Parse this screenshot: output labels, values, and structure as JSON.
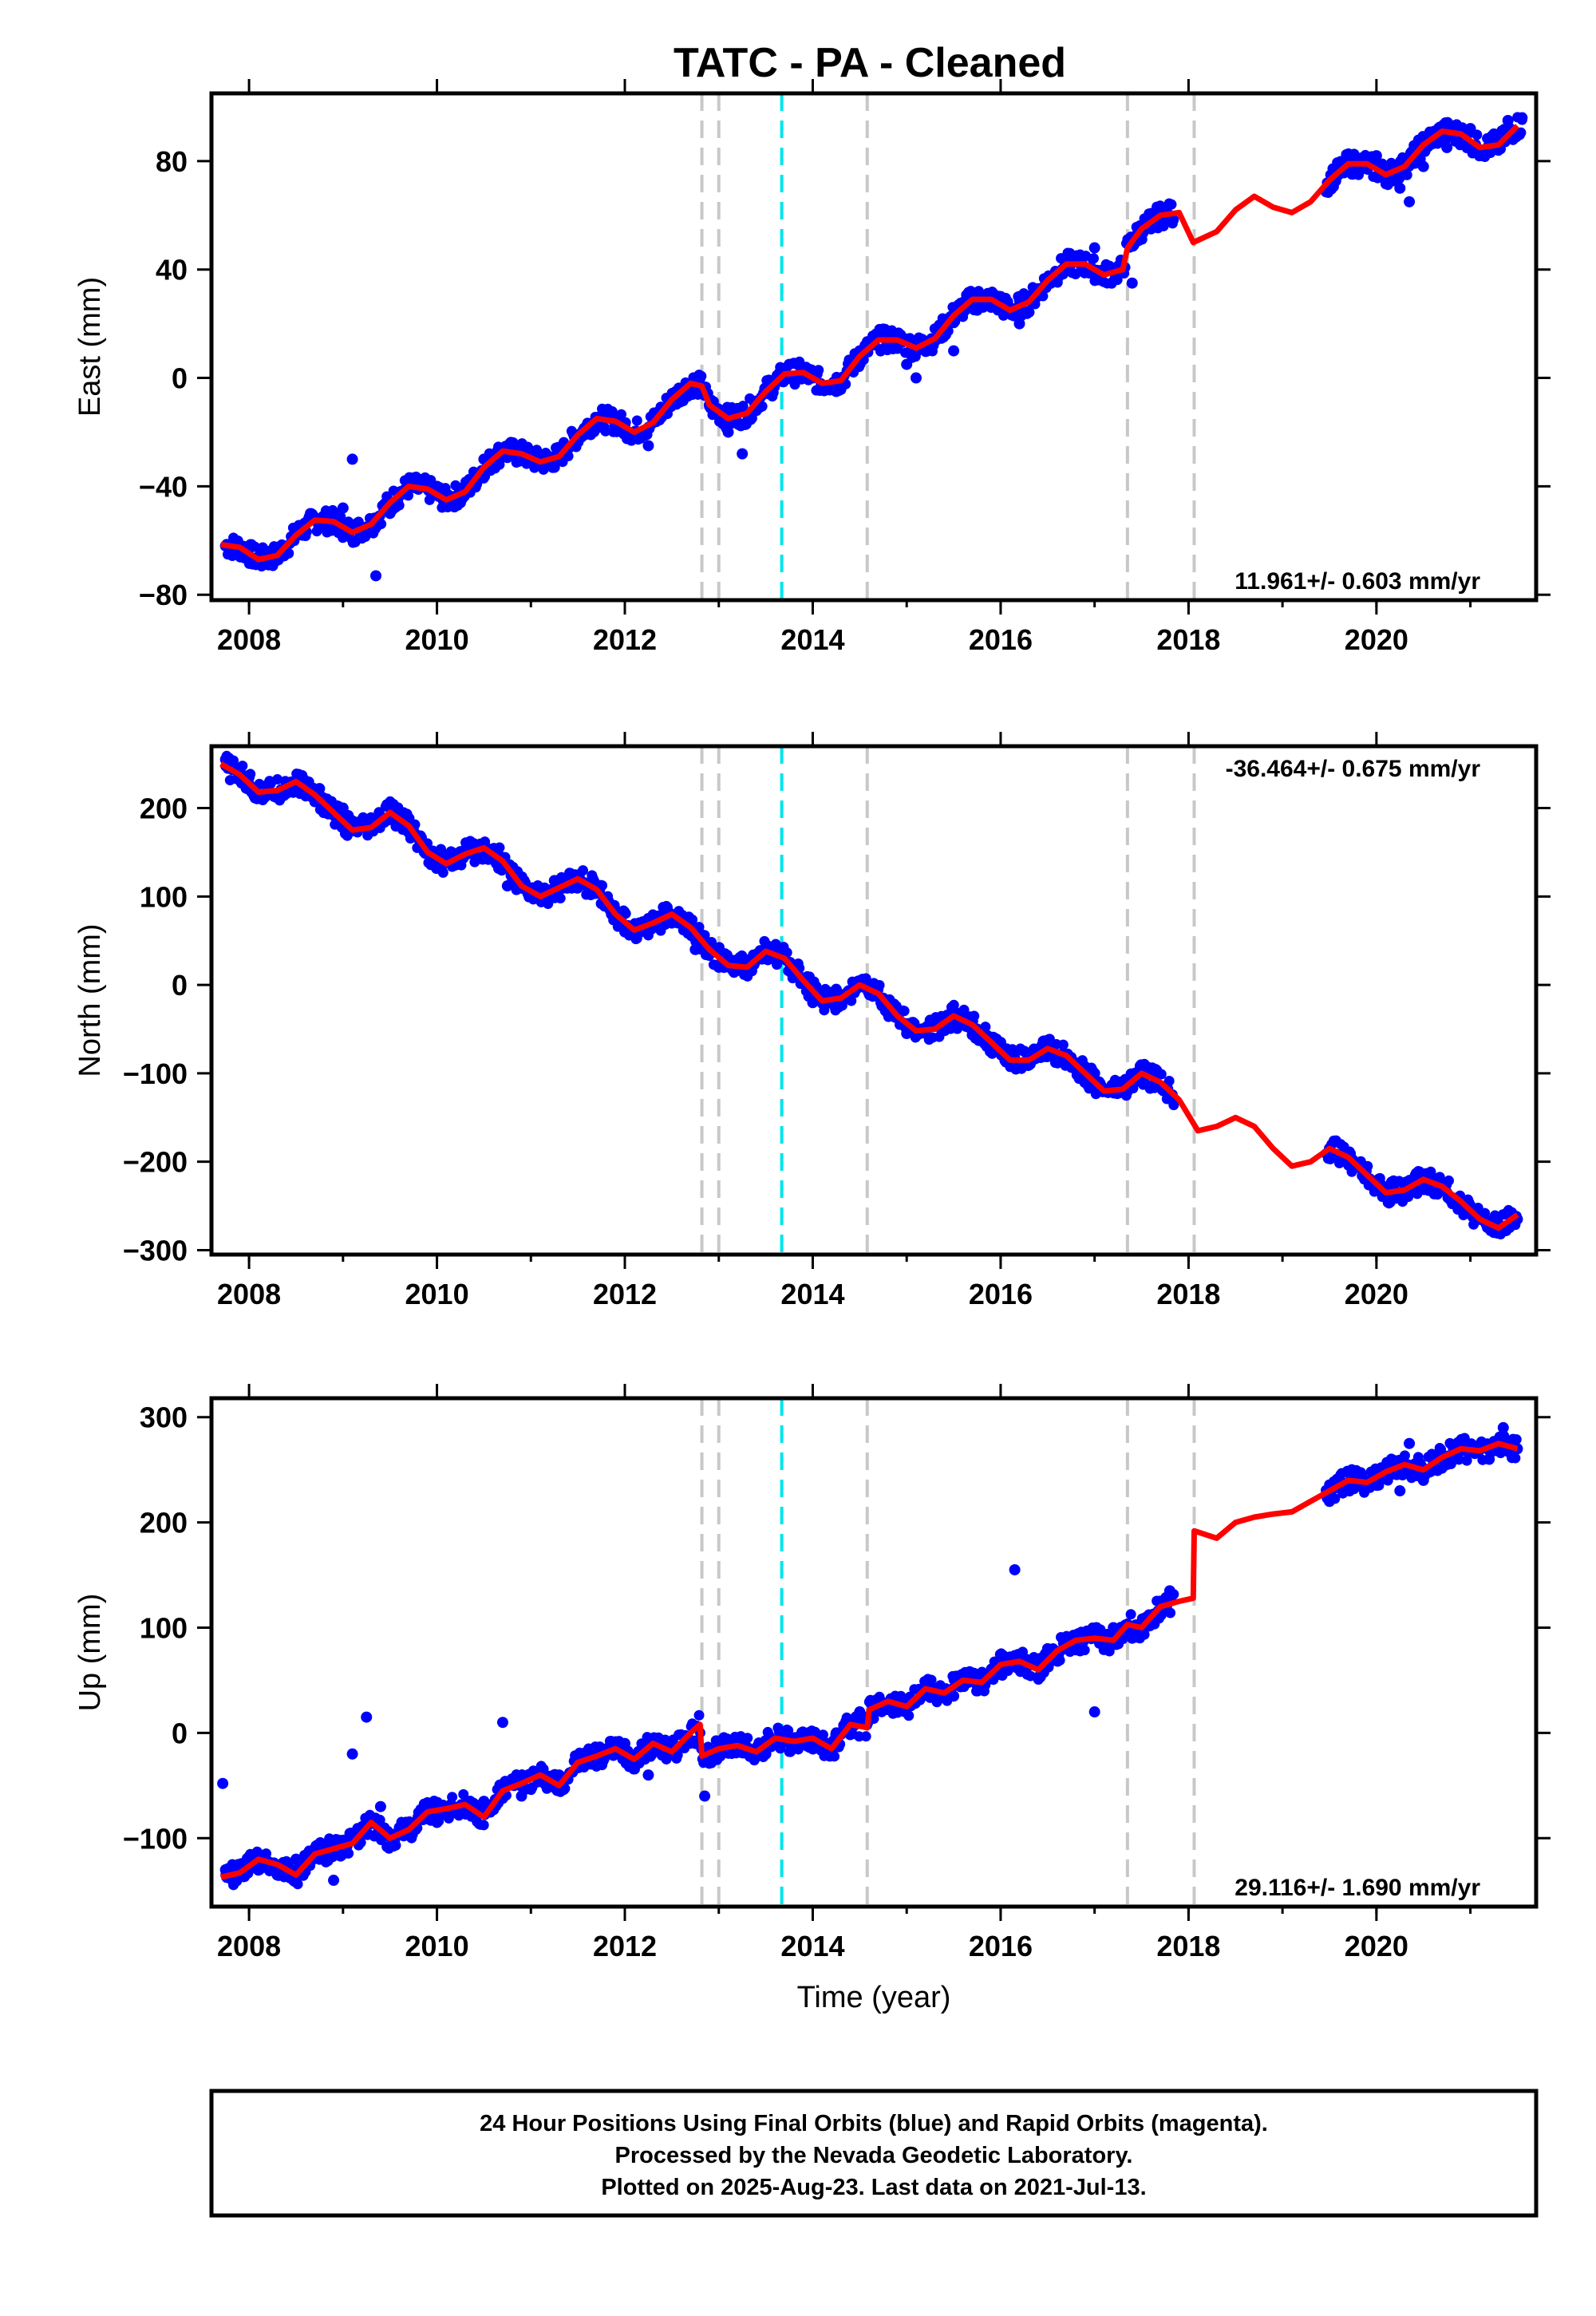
{
  "chart_data": [
    {
      "type": "scatter",
      "panel": "east",
      "title": "TATC  - PA - Cleaned",
      "ylabel": "East (mm)",
      "xlabel": "",
      "xlim": [
        2007.6,
        2021.7
      ],
      "ylim": [
        -82,
        105
      ],
      "xticks": [
        2008,
        2010,
        2012,
        2014,
        2016,
        2018,
        2020
      ],
      "yticks": [
        -80,
        -40,
        0,
        40,
        80
      ],
      "rate_label": "11.961+/- 0.603 mm/yr",
      "rate_position": "bottom-right",
      "grid": false,
      "series": [
        {
          "name": "Final Orbits",
          "color": "#0000ff",
          "x": [
            2007.75,
            2008.0,
            2008.25,
            2008.5,
            2008.75,
            2009.0,
            2009.1,
            2009.25,
            2009.35,
            2009.5,
            2009.75,
            2010.0,
            2010.25,
            2010.5,
            2010.75,
            2011.0,
            2011.25,
            2011.5,
            2011.75,
            2012.0,
            2012.25,
            2012.5,
            2012.75,
            2012.9,
            2013.1,
            2013.25,
            2013.5,
            2013.75,
            2014.0,
            2014.25,
            2014.5,
            2014.75,
            2015.0,
            2015.1,
            2015.25,
            2015.5,
            2015.75,
            2016.0,
            2016.2,
            2016.5,
            2016.75,
            2017.0,
            2017.2,
            2017.4,
            2017.6,
            2017.8,
            2019.5,
            2019.75,
            2020.0,
            2020.25,
            2020.35,
            2020.5,
            2020.75,
            2021.0,
            2021.25,
            2021.4,
            2021.55
          ],
          "y": [
            -62,
            -63,
            -67,
            -58,
            -52,
            -48,
            -30,
            -55,
            -73,
            -50,
            -40,
            -40,
            -46,
            -30,
            -25,
            -27,
            -33,
            -22,
            -16,
            -18,
            -25,
            -10,
            -3,
            -10,
            -20,
            -28,
            -5,
            5,
            0,
            -5,
            10,
            18,
            5,
            0,
            12,
            10,
            25,
            30,
            20,
            35,
            42,
            48,
            40,
            35,
            55,
            60,
            70,
            78,
            82,
            70,
            65,
            78,
            85,
            92,
            90,
            95,
            96
          ]
        },
        {
          "name": "Model",
          "color": "#ff0000",
          "x": [
            2007.7,
            2007.9,
            2008.1,
            2008.3,
            2008.5,
            2008.7,
            2008.9,
            2009.1,
            2009.3,
            2009.5,
            2009.7,
            2009.9,
            2010.1,
            2010.3,
            2010.5,
            2010.7,
            2010.9,
            2011.1,
            2011.3,
            2011.5,
            2011.7,
            2011.9,
            2012.1,
            2012.3,
            2012.5,
            2012.7,
            2012.82,
            2012.9,
            2013.1,
            2013.3,
            2013.5,
            2013.7,
            2013.9,
            2014.1,
            2014.3,
            2014.5,
            2014.7,
            2014.9,
            2015.1,
            2015.3,
            2015.5,
            2015.7,
            2015.9,
            2016.1,
            2016.3,
            2016.5,
            2016.7,
            2016.9,
            2017.1,
            2017.3,
            2017.35,
            2017.5,
            2017.7,
            2017.9,
            2018.05,
            2018.3,
            2018.5,
            2018.7,
            2018.9,
            2019.1,
            2019.3,
            2019.5,
            2019.7,
            2019.9,
            2020.1,
            2020.3,
            2020.5,
            2020.7,
            2020.9,
            2021.1,
            2021.3,
            2021.5
          ],
          "y": [
            -61.5,
            -62.5,
            -67,
            -65.5,
            -58,
            -52.5,
            -53,
            -57,
            -54,
            -46,
            -40,
            -41,
            -45,
            -42,
            -33,
            -27,
            -28,
            -31,
            -29,
            -21,
            -15,
            -16,
            -20,
            -16.5,
            -8,
            -2,
            -3,
            -10,
            -15,
            -13,
            -5,
            1.5,
            2,
            -2,
            -1,
            8,
            14,
            14,
            11,
            14.5,
            23,
            29,
            29,
            25,
            28,
            36,
            42,
            42,
            38,
            40,
            48,
            55,
            60,
            61,
            50,
            54,
            62,
            67,
            63,
            61,
            65,
            73,
            79,
            79,
            75,
            78,
            86,
            91,
            90,
            85,
            86,
            93
          ]
        }
      ],
      "event_lines": [
        {
          "x": 2012.82,
          "color": "#c8c8c8"
        },
        {
          "x": 2013.0,
          "color": "#c8c8c8"
        },
        {
          "x": 2013.67,
          "color": "#00e5ee"
        },
        {
          "x": 2014.58,
          "color": "#c8c8c8"
        },
        {
          "x": 2017.35,
          "color": "#c8c8c8"
        },
        {
          "x": 2018.06,
          "color": "#c8c8c8"
        }
      ]
    },
    {
      "type": "scatter",
      "panel": "north",
      "ylabel": "North (mm)",
      "xlabel": "",
      "xlim": [
        2007.6,
        2021.7
      ],
      "ylim": [
        -305,
        270
      ],
      "xticks": [
        2008,
        2010,
        2012,
        2014,
        2016,
        2018,
        2020
      ],
      "yticks": [
        -300,
        -200,
        -100,
        0,
        100,
        200
      ],
      "rate_label": "-36.464+/- 0.675 mm/yr",
      "rate_position": "top-right",
      "grid": false,
      "series": [
        {
          "name": "Final Orbits",
          "color": "#0000ff",
          "x": [
            2007.75,
            2008.0,
            2008.25,
            2008.5,
            2008.75,
            2009.0,
            2009.25,
            2009.5,
            2009.75,
            2010.0,
            2010.25,
            2010.5,
            2010.75,
            2011.0,
            2011.25,
            2011.5,
            2011.75,
            2012.0,
            2012.25,
            2012.5,
            2012.75,
            2013.0,
            2013.25,
            2013.5,
            2013.75,
            2014.0,
            2014.25,
            2014.5,
            2014.75,
            2015.0,
            2015.25,
            2015.5,
            2015.75,
            2016.0,
            2016.25,
            2016.5,
            2016.75,
            2017.0,
            2017.25,
            2017.5,
            2017.75,
            2019.5,
            2019.75,
            2020.0,
            2020.25,
            2020.5,
            2020.75,
            2021.0,
            2021.25,
            2021.5
          ],
          "y": [
            255,
            235,
            215,
            230,
            222,
            200,
            185,
            190,
            180,
            135,
            150,
            145,
            112,
            100,
            118,
            110,
            92,
            60,
            75,
            70,
            40,
            20,
            18,
            40,
            25,
            -20,
            -5,
            0,
            -15,
            -55,
            -40,
            -40,
            -50,
            -65,
            -75,
            -68,
            -82,
            -100,
            -120,
            -110,
            -120,
            -185,
            -200,
            -225,
            -235,
            -220,
            -235,
            -250,
            -280,
            -265
          ]
        },
        {
          "name": "Model",
          "color": "#ff0000",
          "x": [
            2007.7,
            2007.9,
            2008.1,
            2008.3,
            2008.5,
            2008.7,
            2008.9,
            2009.1,
            2009.3,
            2009.5,
            2009.7,
            2009.9,
            2010.1,
            2010.3,
            2010.5,
            2010.7,
            2010.9,
            2011.1,
            2011.3,
            2011.5,
            2011.7,
            2011.9,
            2012.1,
            2012.3,
            2012.5,
            2012.7,
            2012.9,
            2013.1,
            2013.3,
            2013.5,
            2013.7,
            2013.9,
            2014.1,
            2014.3,
            2014.5,
            2014.7,
            2014.9,
            2015.1,
            2015.3,
            2015.5,
            2015.7,
            2015.9,
            2016.1,
            2016.3,
            2016.5,
            2016.7,
            2016.9,
            2017.1,
            2017.3,
            2017.5,
            2017.7,
            2017.9,
            2018.1,
            2018.3,
            2018.5,
            2018.7,
            2018.9,
            2019.1,
            2019.3,
            2019.5,
            2019.7,
            2019.9,
            2020.1,
            2020.3,
            2020.5,
            2020.7,
            2020.9,
            2021.1,
            2021.3,
            2021.5
          ],
          "y": [
            250,
            238,
            218,
            220,
            230,
            215,
            195,
            175,
            178,
            195,
            180,
            150,
            137,
            148,
            155,
            140,
            112,
            100,
            110,
            120,
            108,
            80,
            62,
            70,
            80,
            65,
            40,
            22,
            20,
            38,
            30,
            5,
            -18,
            -15,
            0,
            -10,
            -35,
            -52,
            -50,
            -35,
            -45,
            -65,
            -85,
            -85,
            -72,
            -80,
            -100,
            -120,
            -118,
            -100,
            -110,
            -130,
            -165,
            -160,
            -150,
            -160,
            -185,
            -205,
            -200,
            -185,
            -195,
            -215,
            -235,
            -232,
            -220,
            -228,
            -245,
            -265,
            -275,
            -260
          ]
        }
      ],
      "event_lines": [
        {
          "x": 2012.82,
          "color": "#c8c8c8"
        },
        {
          "x": 2013.0,
          "color": "#c8c8c8"
        },
        {
          "x": 2013.67,
          "color": "#00e5ee"
        },
        {
          "x": 2014.58,
          "color": "#c8c8c8"
        },
        {
          "x": 2017.35,
          "color": "#c8c8c8"
        },
        {
          "x": 2018.06,
          "color": "#c8c8c8"
        }
      ]
    },
    {
      "type": "scatter",
      "panel": "up",
      "ylabel": "Up (mm)",
      "xlabel": "Time (year)",
      "xlim": [
        2007.6,
        2021.7
      ],
      "ylim": [
        -165,
        318
      ],
      "xticks": [
        2008,
        2010,
        2012,
        2014,
        2016,
        2018,
        2020
      ],
      "yticks": [
        -100,
        0,
        100,
        200,
        300
      ],
      "rate_label": "29.116+/- 1.690 mm/yr",
      "rate_position": "bottom-right",
      "grid": false,
      "series": [
        {
          "name": "Final Orbits",
          "color": "#0000ff",
          "x": [
            2007.72,
            2007.75,
            2007.9,
            2008.1,
            2008.3,
            2008.5,
            2008.75,
            2008.9,
            2009.1,
            2009.25,
            2009.4,
            2009.6,
            2009.8,
            2010.0,
            2010.25,
            2010.5,
            2010.7,
            2010.9,
            2011.1,
            2011.3,
            2011.5,
            2011.75,
            2012.0,
            2012.25,
            2012.5,
            2012.75,
            2012.85,
            2013.0,
            2013.25,
            2013.5,
            2013.75,
            2014.0,
            2014.25,
            2014.5,
            2014.75,
            2015.0,
            2015.25,
            2015.5,
            2015.75,
            2016.0,
            2016.15,
            2016.25,
            2016.5,
            2016.75,
            2017.0,
            2017.02,
            2017.2,
            2017.4,
            2017.6,
            2017.8,
            2019.5,
            2019.75,
            2020.0,
            2020.25,
            2020.35,
            2020.5,
            2020.75,
            2021.0,
            2021.2,
            2021.35,
            2021.5
          ],
          "y": [
            -48,
            -130,
            -125,
            -115,
            -135,
            -120,
            -120,
            -140,
            -20,
            15,
            -70,
            -90,
            -80,
            -85,
            -75,
            -65,
            10,
            -60,
            -45,
            -40,
            -30,
            -25,
            -10,
            -40,
            -20,
            -10,
            -60,
            -10,
            -5,
            -20,
            -10,
            -15,
            0,
            20,
            25,
            30,
            40,
            35,
            45,
            60,
            155,
            70,
            80,
            90,
            20,
            100,
            100,
            90,
            110,
            135,
            220,
            245,
            250,
            230,
            275,
            240,
            255,
            270,
            260,
            290,
            270
          ]
        },
        {
          "name": "Model",
          "color": "#ff0000",
          "x": [
            2007.7,
            2007.9,
            2008.1,
            2008.3,
            2008.5,
            2008.7,
            2008.9,
            2009.1,
            2009.3,
            2009.5,
            2009.7,
            2009.9,
            2010.1,
            2010.3,
            2010.5,
            2010.7,
            2010.9,
            2011.1,
            2011.3,
            2011.5,
            2011.7,
            2011.9,
            2012.1,
            2012.3,
            2012.5,
            2012.7,
            2012.8,
            2012.82,
            2013.0,
            2013.2,
            2013.4,
            2013.6,
            2013.8,
            2014.0,
            2014.2,
            2014.4,
            2014.58,
            2014.6,
            2014.8,
            2015.0,
            2015.2,
            2015.4,
            2015.6,
            2015.8,
            2016.0,
            2016.2,
            2016.4,
            2016.6,
            2016.8,
            2017.0,
            2017.2,
            2017.35,
            2017.5,
            2017.7,
            2017.9,
            2018.05,
            2018.06,
            2018.3,
            2018.5,
            2018.7,
            2018.9,
            2019.1,
            2019.3,
            2019.5,
            2019.7,
            2019.9,
            2020.1,
            2020.3,
            2020.5,
            2020.7,
            2020.9,
            2021.1,
            2021.3,
            2021.5
          ],
          "y": [
            -137,
            -133,
            -120,
            -125,
            -135,
            -115,
            -110,
            -105,
            -85,
            -100,
            -92,
            -75,
            -72,
            -68,
            -80,
            -55,
            -48,
            -40,
            -50,
            -28,
            -22,
            -15,
            -25,
            -10,
            -18,
            0,
            8,
            -22,
            -15,
            -12,
            -18,
            -5,
            -8,
            -5,
            -15,
            8,
            5,
            22,
            30,
            25,
            42,
            38,
            50,
            48,
            65,
            68,
            60,
            78,
            88,
            90,
            88,
            103,
            100,
            120,
            125,
            128,
            192,
            185,
            200,
            205,
            208,
            210,
            220,
            230,
            240,
            238,
            248,
            255,
            250,
            262,
            270,
            268,
            275,
            270
          ]
        }
      ],
      "event_lines": [
        {
          "x": 2012.82,
          "color": "#c8c8c8"
        },
        {
          "x": 2013.0,
          "color": "#c8c8c8"
        },
        {
          "x": 2013.67,
          "color": "#00e5ee"
        },
        {
          "x": 2014.58,
          "color": "#c8c8c8"
        },
        {
          "x": 2017.35,
          "color": "#c8c8c8"
        },
        {
          "x": 2018.06,
          "color": "#c8c8c8"
        }
      ]
    }
  ],
  "footer": {
    "line1": "24 Hour Positions Using Final Orbits (blue) and Rapid Orbits (magenta).",
    "line2": "Processed by the Nevada Geodetic Laboratory.",
    "line3": "Plotted on 2025-Aug-23. Last data on 2021-Jul-13."
  },
  "colors": {
    "data": "#0000ff",
    "model": "#ff0000",
    "event_gray": "#c8c8c8",
    "event_cyan": "#00e5ee"
  }
}
